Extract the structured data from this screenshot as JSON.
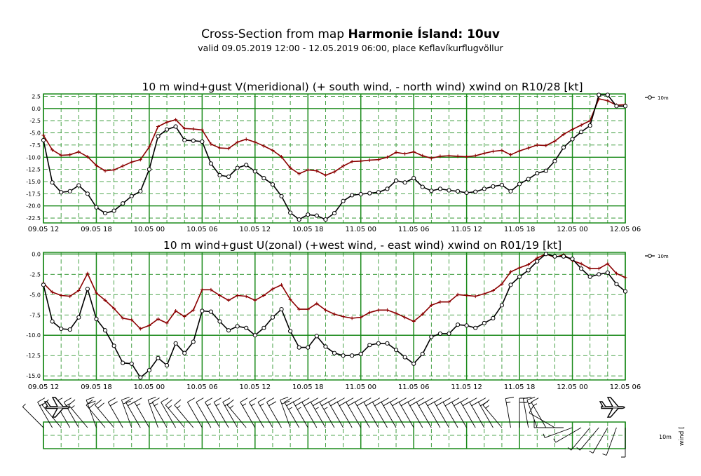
{
  "header": {
    "title_prefix": "Cross-Section from map ",
    "title_bold": "Harmonie Ísland: 10uv",
    "subtitle": "valid 09.05.2019 12:00 - 12.05.2019 06:00, place Keflavíkurflugvöllur"
  },
  "colors": {
    "grid": "#1a8a1a",
    "wind_line": "#000000",
    "gust_line": "#8b0000"
  },
  "chart_data": [
    {
      "type": "line",
      "title": "10 m wind+gust V(meridional) (+ south wind, - north wind) xwind on R10/28 [kt]",
      "x_tick_labels": [
        "09.05 12",
        "09.05 18",
        "10.05 00",
        "10.05 06",
        "10.05 12",
        "10.05 18",
        "11.05 00",
        "11.05 06",
        "11.05 12",
        "11.05 18",
        "12.05 00",
        "12.05 06"
      ],
      "y_tick_labels": [
        "2.5",
        "0.0",
        "-2.5",
        "-5.0",
        "-7.5",
        "-10.0",
        "-12.5",
        "-15.0",
        "-17.5",
        "-20.0",
        "-22.5"
      ],
      "ylim": [
        -23.5,
        3.0
      ],
      "legend": {
        "position": "top-right",
        "label": "10m"
      },
      "series": [
        {
          "name": "10m",
          "color": "#000000",
          "marker": "circle",
          "values": [
            -6.5,
            -15.2,
            -17.2,
            -17.0,
            -15.8,
            -17.5,
            -20.3,
            -21.5,
            -21.0,
            -19.5,
            -18.0,
            -17.0,
            -12.5,
            -5.7,
            -4.3,
            -3.7,
            -6.5,
            -6.6,
            -6.8,
            -11.3,
            -13.7,
            -14.0,
            -12.2,
            -11.6,
            -12.9,
            -14.3,
            -15.6,
            -18.0,
            -21.4,
            -22.8,
            -21.8,
            -22.0,
            -22.8,
            -21.5,
            -19.0,
            -17.8,
            -17.6,
            -17.4,
            -17.2,
            -16.5,
            -14.8,
            -15.2,
            -14.3,
            -16.1,
            -16.9,
            -16.5,
            -16.8,
            -17.0,
            -17.3,
            -17.1,
            -16.5,
            -16.0,
            -15.7,
            -17.0,
            -15.5,
            -14.5,
            -13.3,
            -12.8,
            -10.8,
            -8.0,
            -6.3,
            -4.8,
            -3.5,
            2.8,
            2.8,
            0.5,
            0.5
          ]
        },
        {
          "name": "gust",
          "color": "#8b0000",
          "marker": "plus",
          "values": [
            -5.5,
            -8.5,
            -9.6,
            -9.5,
            -8.9,
            -9.9,
            -11.7,
            -12.8,
            -12.6,
            -11.8,
            -11.0,
            -10.5,
            -7.9,
            -3.7,
            -2.8,
            -2.3,
            -4.1,
            -4.2,
            -4.4,
            -7.3,
            -8.1,
            -8.2,
            -6.9,
            -6.3,
            -6.9,
            -7.7,
            -8.6,
            -9.9,
            -12.2,
            -13.4,
            -12.6,
            -12.8,
            -13.7,
            -13.0,
            -11.8,
            -10.9,
            -10.8,
            -10.6,
            -10.5,
            -10.0,
            -9.0,
            -9.3,
            -8.9,
            -9.7,
            -10.2,
            -9.8,
            -9.7,
            -9.8,
            -9.9,
            -9.7,
            -9.2,
            -8.8,
            -8.6,
            -9.5,
            -8.7,
            -8.1,
            -7.5,
            -7.6,
            -6.7,
            -5.3,
            -4.3,
            -3.4,
            -2.5,
            2.0,
            1.6,
            0.7,
            0.8
          ]
        }
      ]
    },
    {
      "type": "line",
      "title": "10 m wind+gust U(zonal) (+west wind, - east wind) xwind on R01/19 [kt]",
      "x_tick_labels": [
        "09.05 12",
        "09.05 18",
        "10.05 00",
        "10.05 06",
        "10.05 12",
        "10.05 18",
        "11.05 00",
        "11.05 06",
        "11.05 12",
        "11.05 18",
        "12.05 00",
        "12.05 06"
      ],
      "y_tick_labels": [
        "0.0",
        "-2.5",
        "-5.0",
        "-7.5",
        "-10.0",
        "-12.5",
        "-15.0"
      ],
      "ylim": [
        -15.5,
        0.2
      ],
      "legend": {
        "position": "top-right",
        "label": "10m"
      },
      "series": [
        {
          "name": "10m",
          "color": "#000000",
          "marker": "circle",
          "values": [
            -3.8,
            -8.3,
            -9.2,
            -9.3,
            -7.8,
            -4.3,
            -8.0,
            -9.4,
            -11.3,
            -13.4,
            -13.5,
            -15.2,
            -14.3,
            -12.8,
            -13.7,
            -11.0,
            -12.2,
            -10.8,
            -7.0,
            -7.1,
            -8.3,
            -9.4,
            -8.9,
            -9.1,
            -10.0,
            -9.1,
            -7.8,
            -6.8,
            -9.5,
            -11.5,
            -11.5,
            -10.1,
            -11.4,
            -12.2,
            -12.5,
            -12.5,
            -12.3,
            -11.2,
            -11.0,
            -11.0,
            -11.8,
            -12.7,
            -13.5,
            -12.3,
            -10.2,
            -9.8,
            -9.8,
            -8.7,
            -8.8,
            -9.1,
            -8.5,
            -7.9,
            -6.3,
            -3.8,
            -2.8,
            -2.0,
            -0.9,
            0.0,
            -0.3,
            -0.3,
            -0.6,
            -1.8,
            -2.8,
            -2.5,
            -2.3,
            -3.7,
            -4.6
          ]
        },
        {
          "name": "gust",
          "color": "#8b0000",
          "marker": "plus",
          "values": [
            -3.6,
            -4.7,
            -5.1,
            -5.2,
            -4.5,
            -2.4,
            -4.8,
            -5.7,
            -6.7,
            -7.9,
            -8.1,
            -9.2,
            -8.8,
            -8.0,
            -8.5,
            -7.0,
            -7.7,
            -6.9,
            -4.4,
            -4.4,
            -5.1,
            -5.7,
            -5.1,
            -5.2,
            -5.7,
            -5.1,
            -4.3,
            -3.8,
            -5.6,
            -6.8,
            -6.8,
            -6.1,
            -6.9,
            -7.4,
            -7.7,
            -7.9,
            -7.8,
            -7.2,
            -6.9,
            -6.9,
            -7.3,
            -7.8,
            -8.3,
            -7.4,
            -6.3,
            -5.9,
            -5.9,
            -5.0,
            -5.1,
            -5.2,
            -4.9,
            -4.5,
            -3.7,
            -2.2,
            -1.7,
            -1.3,
            -0.5,
            0.0,
            -0.4,
            -0.1,
            -0.8,
            -1.2,
            -1.8,
            -1.8,
            -1.2,
            -2.4,
            -2.9
          ]
        }
      ]
    }
  ],
  "wind_panel": {
    "label_10m": "10m",
    "label_wind": "wind [",
    "barb_directions_deg": [
      315,
      330,
      320,
      330,
      330,
      320,
      340,
      320,
      320,
      330,
      340,
      330,
      330,
      340,
      330,
      330,
      320,
      320,
      330,
      330,
      330,
      330,
      330,
      320,
      330,
      330,
      330,
      330,
      340,
      330,
      330,
      330,
      330,
      330,
      330,
      330,
      330,
      330,
      330,
      330,
      330,
      330,
      330,
      330,
      330,
      330,
      330,
      330,
      330,
      330,
      330,
      330,
      320,
      350,
      0,
      350,
      340,
      330,
      300,
      270,
      250,
      240,
      220,
      220,
      210,
      200,
      180
    ],
    "barb_speeds_kt": [
      6,
      15,
      17,
      17,
      16,
      17,
      20,
      22,
      21,
      20,
      18,
      18,
      15,
      13,
      14,
      12,
      14,
      13,
      10,
      12,
      15,
      16,
      15,
      15,
      16,
      16,
      16,
      18,
      22,
      24,
      23,
      22,
      24,
      23,
      22,
      22,
      21,
      20,
      20,
      20,
      19,
      20,
      20,
      20,
      19,
      19,
      19,
      19,
      19,
      19,
      19,
      18,
      17,
      17,
      16,
      15,
      13,
      13,
      11,
      8,
      7,
      5,
      4,
      3,
      3,
      4,
      5
    ]
  }
}
